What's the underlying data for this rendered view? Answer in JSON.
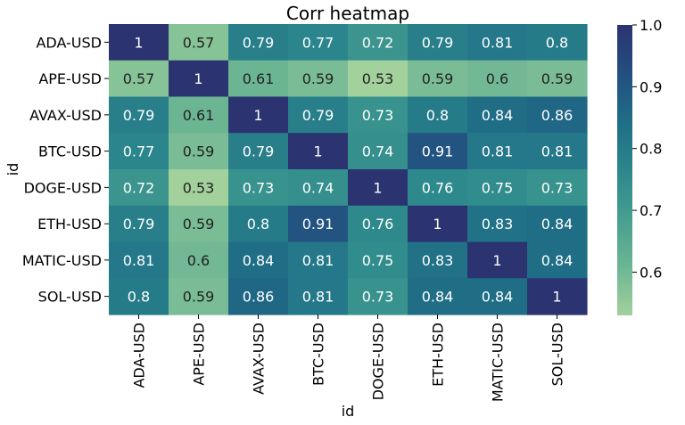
{
  "chart_data": {
    "type": "heatmap",
    "title": "Corr heatmap",
    "xlabel": "id",
    "ylabel": "id",
    "categories": [
      "ADA-USD",
      "APE-USD",
      "AVAX-USD",
      "BTC-USD",
      "DOGE-USD",
      "ETH-USD",
      "MATIC-USD",
      "SOL-USD"
    ],
    "values": [
      [
        1,
        0.57,
        0.79,
        0.77,
        0.72,
        0.79,
        0.81,
        0.8
      ],
      [
        0.57,
        1,
        0.61,
        0.59,
        0.53,
        0.59,
        0.6,
        0.59
      ],
      [
        0.79,
        0.61,
        1,
        0.79,
        0.73,
        0.8,
        0.84,
        0.86
      ],
      [
        0.77,
        0.59,
        0.79,
        1,
        0.74,
        0.91,
        0.81,
        0.81
      ],
      [
        0.72,
        0.53,
        0.73,
        0.74,
        1,
        0.76,
        0.75,
        0.73
      ],
      [
        0.79,
        0.59,
        0.8,
        0.91,
        0.76,
        1,
        0.83,
        0.84
      ],
      [
        0.81,
        0.6,
        0.84,
        0.81,
        0.75,
        0.83,
        1,
        0.84
      ],
      [
        0.8,
        0.59,
        0.86,
        0.81,
        0.73,
        0.84,
        0.84,
        1
      ]
    ],
    "vmin": 0.53,
    "vmax": 1.0,
    "colorbar_ticks": [
      0.6,
      0.7,
      0.8,
      0.9,
      1.0
    ],
    "colorbar_tick_labels": [
      "0.6",
      "0.7",
      "0.8",
      "0.9",
      "1.0"
    ],
    "colormap": "crest",
    "colormap_stops": [
      "#a2d19c",
      "#6cb593",
      "#469f8f",
      "#2c878c",
      "#1f6d86",
      "#234f80",
      "#2b3370"
    ],
    "annotation_color_light_cells": "#222222",
    "annotation_color_dark_cells": "#ffffff"
  }
}
